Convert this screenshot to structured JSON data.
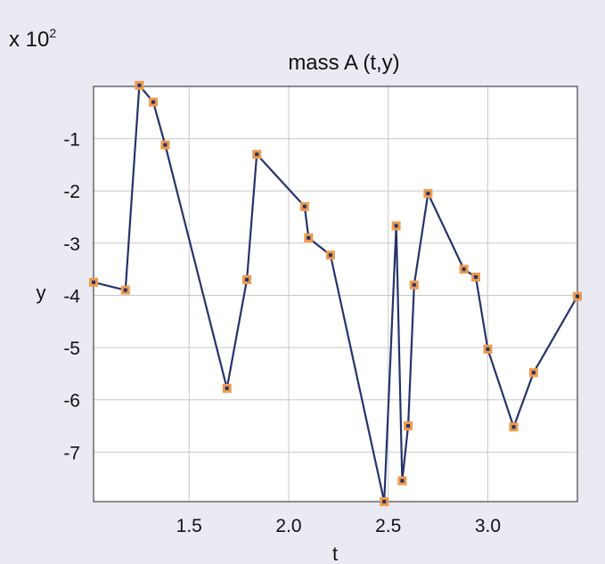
{
  "chart_data": {
    "type": "line",
    "title": "mass A (t,y)",
    "xlabel": "t",
    "ylabel": "y",
    "y_multiplier": {
      "base": "x 10",
      "exponent": "2"
    },
    "xlim": [
      1.02,
      3.45
    ],
    "ylim": [
      -7.95,
      0.0
    ],
    "x_ticks": [
      1.5,
      2.0,
      2.5,
      3.0
    ],
    "x_tick_labels": [
      "1.5",
      "2.0",
      "2.5",
      "3.0"
    ],
    "y_ticks": [
      -1,
      -2,
      -3,
      -4,
      -5,
      -6,
      -7
    ],
    "y_tick_labels": [
      "-1",
      "-2",
      "-3",
      "-4",
      "-5",
      "-6",
      "-7"
    ],
    "grid": true,
    "series": [
      {
        "line_color": "#25336b",
        "marker_color": "#ef9a4c",
        "marker": "square",
        "x": [
          1.02,
          1.18,
          1.25,
          1.32,
          1.38,
          1.69,
          1.79,
          1.84,
          2.08,
          2.1,
          2.21,
          2.48,
          2.54,
          2.57,
          2.6,
          2.63,
          2.7,
          2.88,
          2.94,
          3.0,
          3.13,
          3.23,
          3.45
        ],
        "y": [
          -3.75,
          -3.9,
          0.02,
          -0.3,
          -1.12,
          -5.78,
          -3.7,
          -1.3,
          -2.3,
          -2.9,
          -3.23,
          -7.95,
          -2.67,
          -7.55,
          -6.5,
          -3.8,
          -2.05,
          -3.5,
          -3.65,
          -5.03,
          -6.52,
          -5.48,
          -4.02
        ]
      }
    ]
  }
}
